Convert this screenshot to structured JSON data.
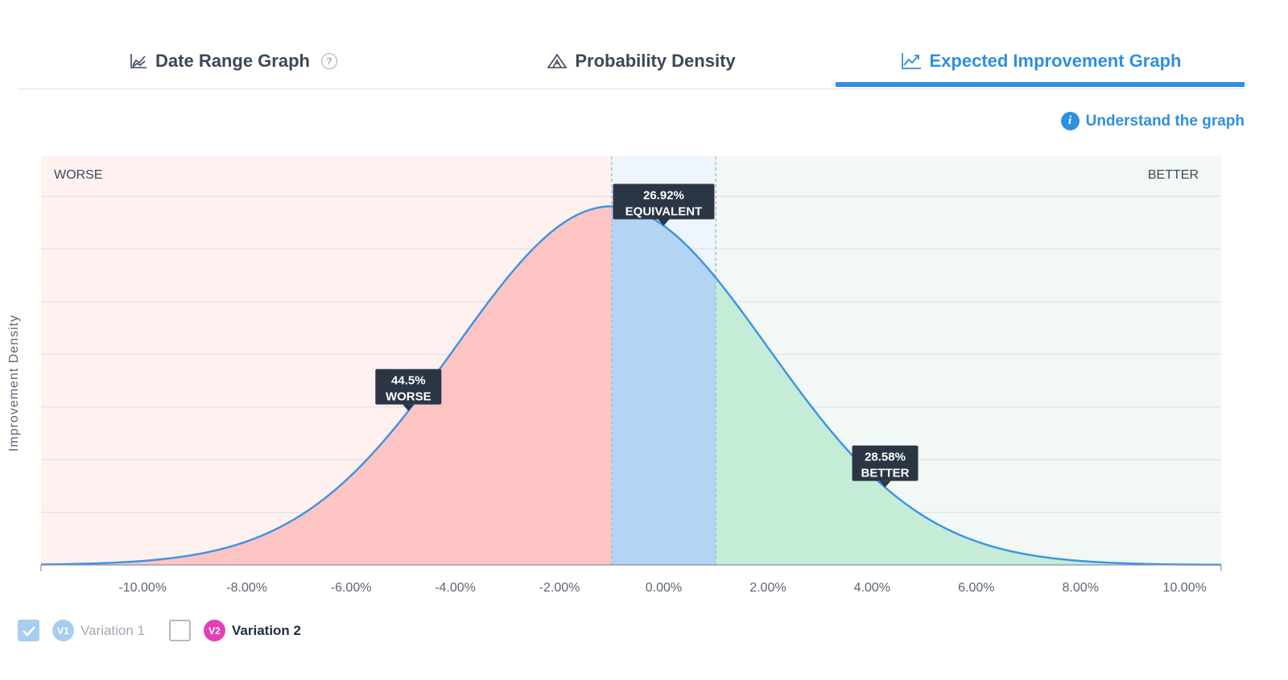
{
  "tabs": [
    {
      "label": "Date Range Graph",
      "icon": "line-chart-icon",
      "active": false,
      "help": "?"
    },
    {
      "label": "Probability Density",
      "icon": "density-icon",
      "active": false
    },
    {
      "label": "Expected Improvement Graph",
      "icon": "trend-chart-icon",
      "active": true
    }
  ],
  "understand_link": {
    "label": "Understand the graph",
    "icon": "info-icon",
    "icon_glyph": "i"
  },
  "chart_data": {
    "type": "area",
    "ylabel": "Improvement Density",
    "region_labels": {
      "left": "WORSE",
      "right": "BETTER"
    },
    "xlim": [
      -11.95,
      10.7
    ],
    "ylim": [
      0,
      1.14
    ],
    "x_ticks": [
      -10,
      -8,
      -6,
      -4,
      -2,
      0,
      2,
      4,
      6,
      8,
      10
    ],
    "x_tick_labels": [
      "-10.00%",
      "-8.00%",
      "-6.00%",
      "-4.00%",
      "-2.00%",
      "0.00%",
      "2.00%",
      "4.00%",
      "6.00%",
      "8.00%",
      "10.00%"
    ],
    "y_gridlines": 7,
    "grid": true,
    "distribution": {
      "mean": -1.0,
      "sd": 3.0,
      "peak_density": 1.0
    },
    "equivalence_bounds": [
      -1.0,
      1.0
    ],
    "regions": [
      {
        "name": "Worse",
        "range": [
          -11.95,
          -1.0
        ],
        "probability_label": "44.5%",
        "label": "WORSE",
        "marker_x": -4.9,
        "color": "#fcc5c4",
        "bg": "#fef1f0"
      },
      {
        "name": "Equivalent",
        "range": [
          -1.0,
          1.0
        ],
        "probability_label": "26.92%",
        "label": "EQUIVALENT",
        "marker_x": 0.0,
        "color": "#b3d4f3",
        "bg": "#eef5fd"
      },
      {
        "name": "Better",
        "range": [
          1.0,
          10.7
        ],
        "probability_label": "28.58%",
        "label": "BETTER",
        "marker_x": 4.25,
        "color": "#c4ecd6",
        "bg": "#f1f8f5"
      }
    ],
    "line_color": "#3a93e6"
  },
  "legend": [
    {
      "label": "Variation 1",
      "badge": "V1",
      "checked": true
    },
    {
      "label": "Variation 2",
      "badge": "V2",
      "checked": false
    }
  ]
}
